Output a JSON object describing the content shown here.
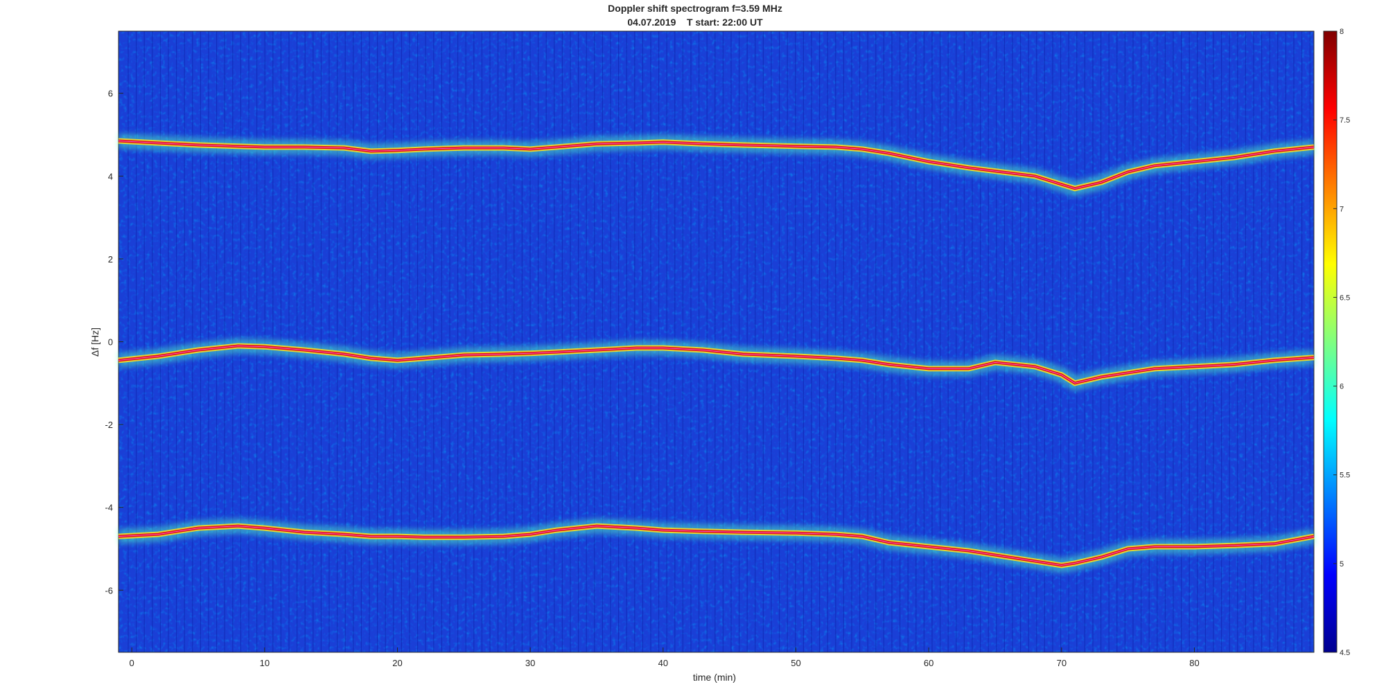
{
  "chart_data": {
    "type": "heatmap",
    "title": "Doppler shift spectrogram f=3.59 MHz",
    "subtitle": "04.07.2019    T start: 22:00 UT",
    "xlabel": "time (min)",
    "ylabel": "Δf [Hz]",
    "xlim": [
      -1,
      89
    ],
    "ylim": [
      -7.5,
      7.5
    ],
    "x_ticks": [
      "0",
      "10",
      "20",
      "30",
      "40",
      "50",
      "60",
      "70",
      "80"
    ],
    "y_ticks": [
      "6",
      "4",
      "2",
      "0",
      "-2",
      "-4",
      "-6"
    ],
    "colorbar": {
      "range": [
        4.5,
        8
      ],
      "ticks": [
        "8",
        "7.5",
        "7",
        "6.5",
        "6",
        "5.5",
        "5",
        "4.5"
      ],
      "colormap": "jet"
    },
    "background_color": "#1a3fd6",
    "series": [
      {
        "x": [
          -1,
          2,
          5,
          8,
          10,
          13,
          16,
          18,
          20,
          22,
          25,
          28,
          30,
          32,
          35,
          38,
          40,
          43,
          46,
          50,
          53,
          55,
          57,
          60,
          63,
          65,
          68,
          70,
          71,
          73,
          75,
          77,
          80,
          83,
          86,
          89
        ],
        "y": [
          4.85,
          4.8,
          4.75,
          4.72,
          4.7,
          4.7,
          4.68,
          4.6,
          4.62,
          4.65,
          4.68,
          4.68,
          4.65,
          4.7,
          4.78,
          4.8,
          4.82,
          4.78,
          4.75,
          4.72,
          4.7,
          4.65,
          4.55,
          4.35,
          4.2,
          4.12,
          4.0,
          3.8,
          3.7,
          3.85,
          4.1,
          4.25,
          4.35,
          4.45,
          4.6,
          4.7
        ]
      },
      {
        "x": [
          -1,
          2,
          5,
          8,
          10,
          13,
          16,
          18,
          20,
          22,
          25,
          28,
          30,
          32,
          35,
          38,
          40,
          43,
          46,
          50,
          53,
          55,
          57,
          60,
          63,
          65,
          68,
          70,
          71,
          73,
          75,
          77,
          80,
          83,
          86,
          89
        ],
        "y": [
          -0.45,
          -0.35,
          -0.2,
          -0.1,
          -0.12,
          -0.2,
          -0.3,
          -0.4,
          -0.45,
          -0.4,
          -0.32,
          -0.3,
          -0.28,
          -0.25,
          -0.2,
          -0.15,
          -0.15,
          -0.2,
          -0.3,
          -0.35,
          -0.4,
          -0.45,
          -0.55,
          -0.65,
          -0.65,
          -0.5,
          -0.6,
          -0.8,
          -1.0,
          -0.85,
          -0.75,
          -0.65,
          -0.6,
          -0.55,
          -0.45,
          -0.38
        ]
      },
      {
        "x": [
          -1,
          2,
          5,
          8,
          10,
          13,
          16,
          18,
          20,
          22,
          25,
          28,
          30,
          32,
          35,
          38,
          40,
          43,
          46,
          50,
          53,
          55,
          57,
          60,
          63,
          65,
          68,
          70,
          71,
          73,
          75,
          77,
          80,
          83,
          86,
          89
        ],
        "y": [
          -4.7,
          -4.65,
          -4.5,
          -4.45,
          -4.5,
          -4.6,
          -4.65,
          -4.7,
          -4.7,
          -4.72,
          -4.72,
          -4.7,
          -4.65,
          -4.55,
          -4.45,
          -4.5,
          -4.55,
          -4.58,
          -4.6,
          -4.62,
          -4.65,
          -4.7,
          -4.85,
          -4.95,
          -5.05,
          -5.15,
          -5.3,
          -5.4,
          -5.35,
          -5.2,
          -5.0,
          -4.95,
          -4.95,
          -4.92,
          -4.88,
          -4.7
        ]
      }
    ]
  }
}
